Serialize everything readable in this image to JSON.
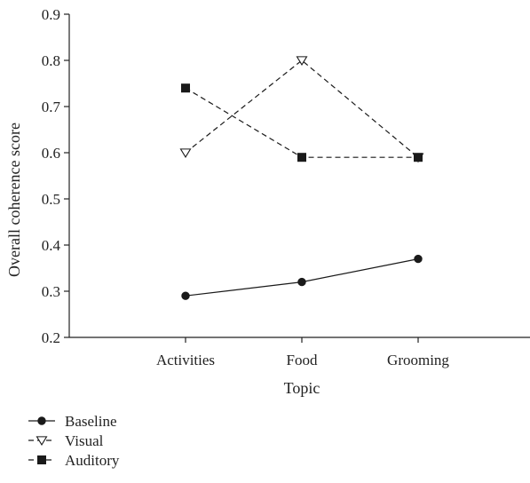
{
  "chart_data": {
    "type": "line",
    "title": "",
    "xlabel": "Topic",
    "ylabel": "Overall coherence score",
    "categories": [
      "Activities",
      "Food",
      "Grooming"
    ],
    "ylim": [
      0.2,
      0.9
    ],
    "yticks": [
      "0.2",
      "0.3",
      "0.4",
      "0.5",
      "0.6",
      "0.7",
      "0.8",
      "0.9"
    ],
    "grid": false,
    "legend_position": "bottom-left",
    "series": [
      {
        "name": "Baseline",
        "values": [
          0.29,
          0.32,
          0.37
        ],
        "marker": "circle-filled",
        "line": "solid",
        "color": "#1a1a1a"
      },
      {
        "name": "Visual",
        "values": [
          0.6,
          0.8,
          0.59
        ],
        "marker": "triangle-down-open",
        "line": "dashed",
        "color": "#1a1a1a"
      },
      {
        "name": "Auditory",
        "values": [
          0.74,
          0.59,
          0.59
        ],
        "marker": "square-filled",
        "line": "dashed",
        "color": "#1a1a1a"
      }
    ]
  }
}
